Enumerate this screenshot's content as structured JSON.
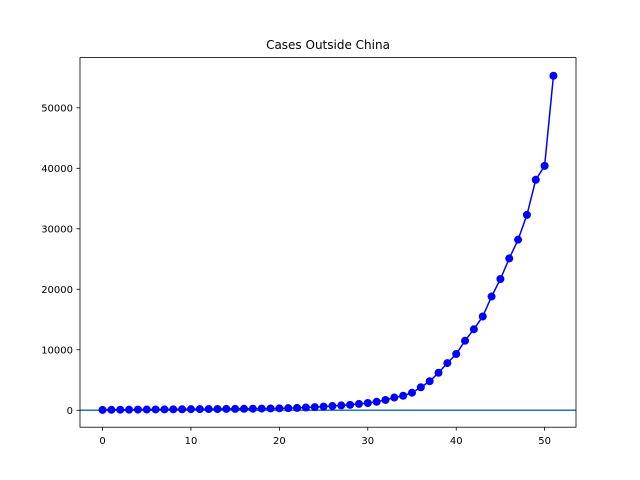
{
  "colors": {
    "series": "#0000ff",
    "hline": "#1f77b4",
    "axes": "#000000",
    "background": "#ffffff"
  },
  "chart_data": {
    "type": "line",
    "title": "Cases Outside China",
    "xlabel": "",
    "ylabel": "",
    "xlim": [
      -2.55,
      53.55
    ],
    "ylim": [
      -2800,
      58300
    ],
    "xticks": [
      0,
      10,
      20,
      30,
      40,
      50
    ],
    "yticks": [
      0,
      10000,
      20000,
      30000,
      40000,
      50000
    ],
    "grid": false,
    "hline": 0,
    "series": [
      {
        "marker": "circle",
        "x": [
          0,
          1,
          2,
          3,
          4,
          5,
          6,
          7,
          8,
          9,
          10,
          11,
          12,
          13,
          14,
          15,
          16,
          17,
          18,
          19,
          20,
          21,
          22,
          23,
          24,
          25,
          26,
          27,
          28,
          29,
          30,
          31,
          32,
          33,
          34,
          35,
          36,
          37,
          38,
          39,
          40,
          41,
          42,
          43,
          44,
          45,
          46,
          47,
          48,
          49,
          50,
          51
        ],
        "y": [
          60,
          80,
          90,
          100,
          110,
          120,
          130,
          140,
          150,
          160,
          180,
          190,
          200,
          210,
          220,
          230,
          240,
          260,
          280,
          300,
          320,
          350,
          390,
          450,
          520,
          600,
          700,
          800,
          900,
          1050,
          1200,
          1400,
          1700,
          2100,
          2400,
          2900,
          3800,
          4800,
          6200,
          7800,
          9300,
          11500,
          13400,
          15500,
          18800,
          21700,
          25100,
          28200,
          32300,
          38100,
          40400,
          55300
        ]
      }
    ]
  }
}
